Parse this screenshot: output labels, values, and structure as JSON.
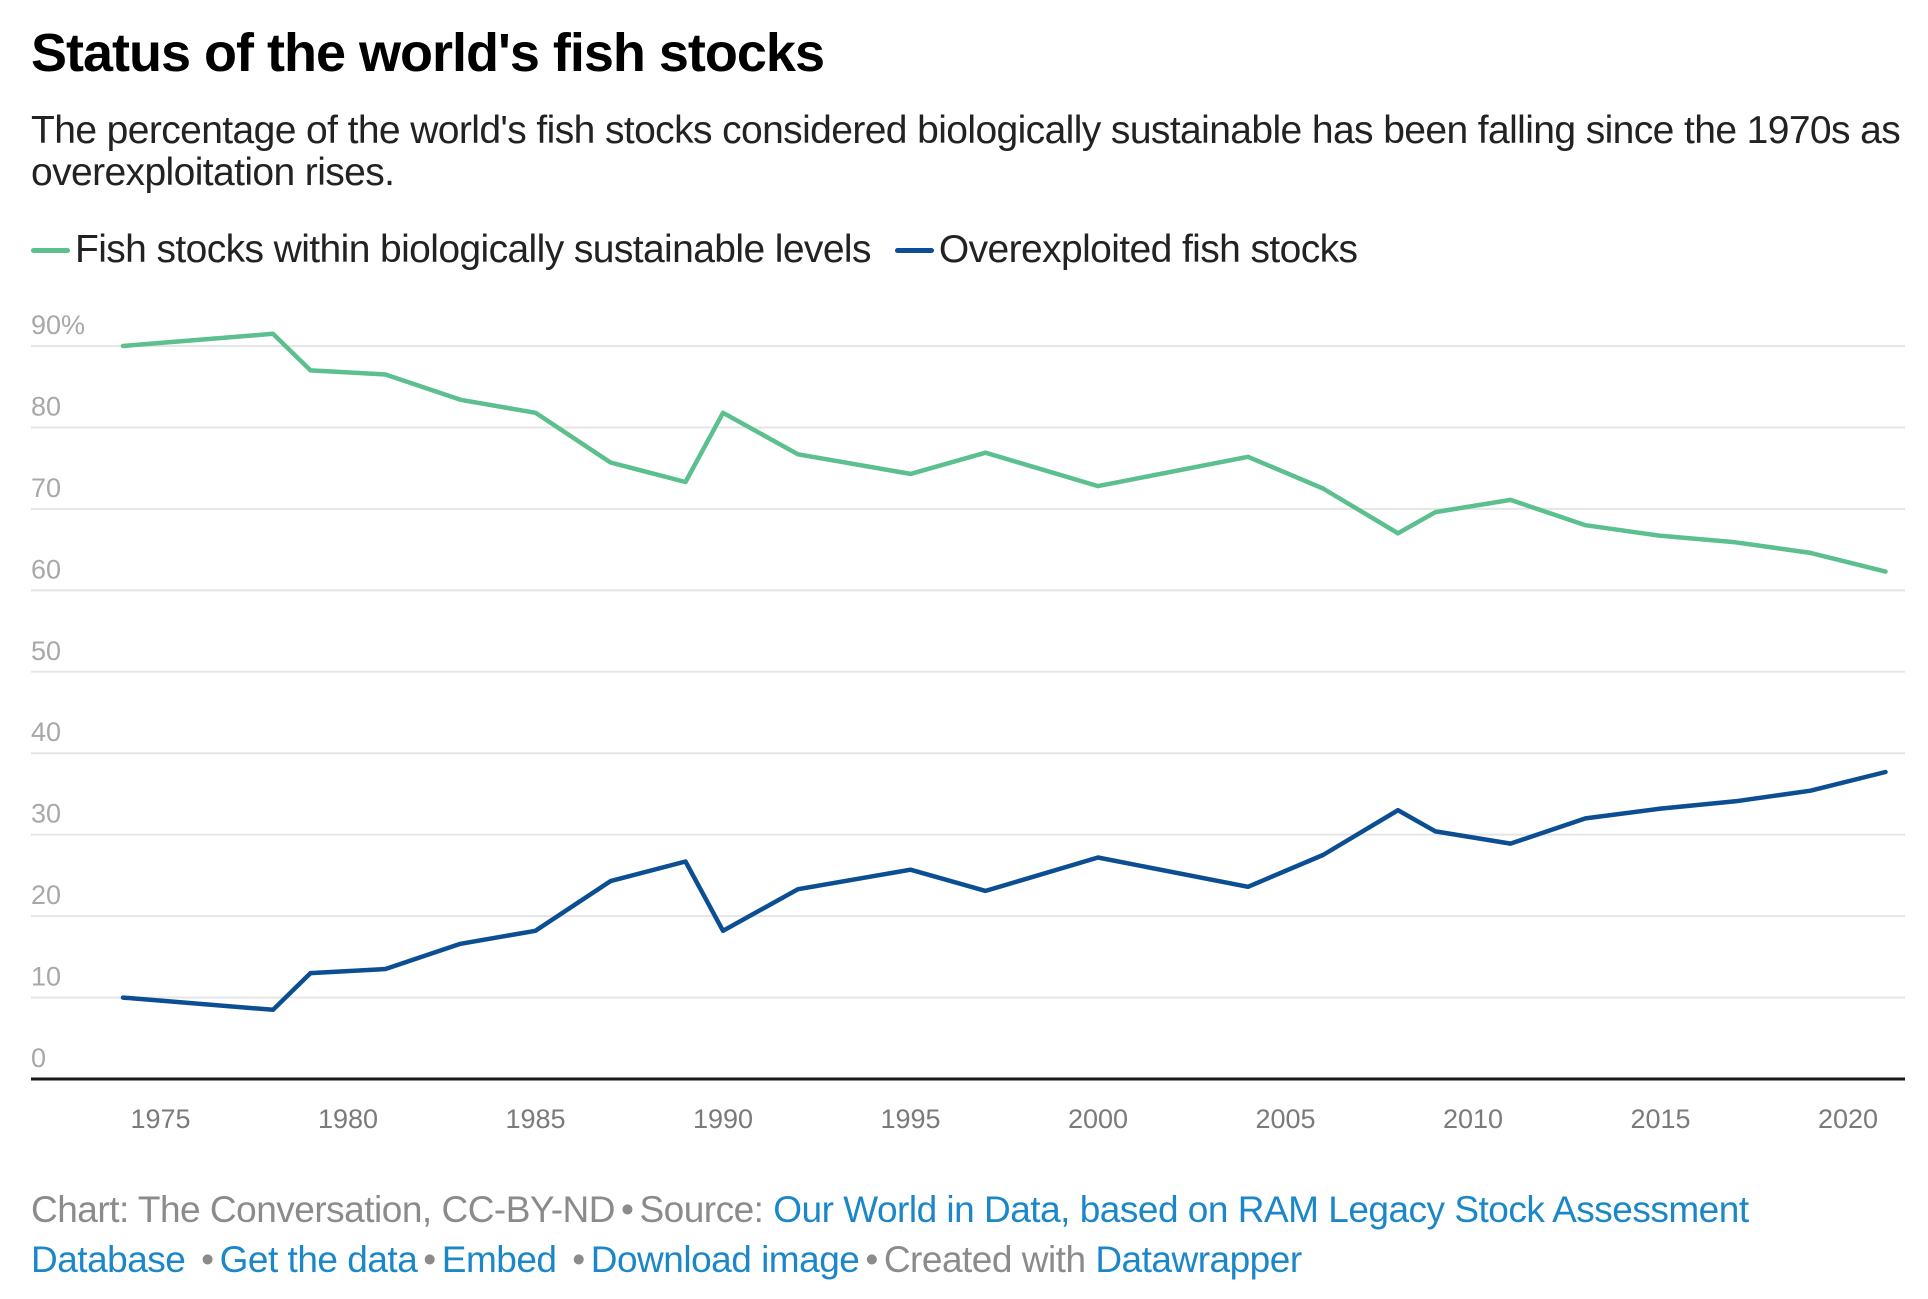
{
  "title": "Status of the world's fish stocks",
  "subtitle": "The percentage of the world's fish stocks considered biologically sustainable has been falling since the 1970s as overexploitation rises.",
  "legend": [
    {
      "label": "Fish stocks within biologically sustainable levels",
      "color": "#5bbf8e"
    },
    {
      "label": "Overexploited fish stocks",
      "color": "#0b4e92"
    }
  ],
  "chart_data": {
    "type": "line",
    "title": "Status of the world's fish stocks",
    "xlabel": "",
    "ylabel": "",
    "xlim": [
      1972.5,
      2022.5
    ],
    "ylim": [
      0,
      90
    ],
    "grid": true,
    "legend_position": "top-left",
    "y_ticks": [
      {
        "value": 90,
        "label": "90%"
      },
      {
        "value": 80,
        "label": "80"
      },
      {
        "value": 70,
        "label": "70"
      },
      {
        "value": 60,
        "label": "60"
      },
      {
        "value": 50,
        "label": "50"
      },
      {
        "value": 40,
        "label": "40"
      },
      {
        "value": 30,
        "label": "30"
      },
      {
        "value": 20,
        "label": "20"
      },
      {
        "value": 10,
        "label": "10"
      },
      {
        "value": 0,
        "label": "0"
      }
    ],
    "x_ticks": [
      {
        "value": 1975,
        "label": "1975"
      },
      {
        "value": 1980,
        "label": "1980"
      },
      {
        "value": 1985,
        "label": "1985"
      },
      {
        "value": 1990,
        "label": "1990"
      },
      {
        "value": 1995,
        "label": "1995"
      },
      {
        "value": 2000,
        "label": "2000"
      },
      {
        "value": 2005,
        "label": "2005"
      },
      {
        "value": 2010,
        "label": "2010"
      },
      {
        "value": 2015,
        "label": "2015"
      },
      {
        "value": 2020,
        "label": "2020"
      }
    ],
    "x": [
      1974,
      1978,
      1979,
      1981,
      1983,
      1985,
      1987,
      1989,
      1990,
      1992,
      1995,
      1997,
      2000,
      2004,
      2006,
      2008,
      2009,
      2011,
      2013,
      2015,
      2017,
      2019,
      2021
    ],
    "series": [
      {
        "name": "Fish stocks within biologically sustainable levels",
        "color": "#5bbf8e",
        "values": [
          90.0,
          91.5,
          87.0,
          86.5,
          83.4,
          81.8,
          75.7,
          73.3,
          81.8,
          76.7,
          74.3,
          76.9,
          72.8,
          76.4,
          72.5,
          67.0,
          69.6,
          71.1,
          68.0,
          66.7,
          65.9,
          64.6,
          62.3
        ]
      },
      {
        "name": "Overexploited fish stocks",
        "color": "#0b4e92",
        "values": [
          10.0,
          8.5,
          13.0,
          13.5,
          16.6,
          18.2,
          24.3,
          26.7,
          18.2,
          23.3,
          25.7,
          23.1,
          27.2,
          23.6,
          27.5,
          33.0,
          30.4,
          28.9,
          32.0,
          33.2,
          34.1,
          35.4,
          37.7
        ]
      }
    ]
  },
  "footer": {
    "chart_credit": "Chart: The Conversation, CC-BY-ND",
    "source_label": "Source:",
    "source_link": "Our World in Data, based on RAM Legacy Stock Assessment Database",
    "get_data": "Get the data",
    "embed": "Embed",
    "download": "Download image",
    "created_with": "Created with",
    "tool": "Datawrapper",
    "separator": "•"
  }
}
